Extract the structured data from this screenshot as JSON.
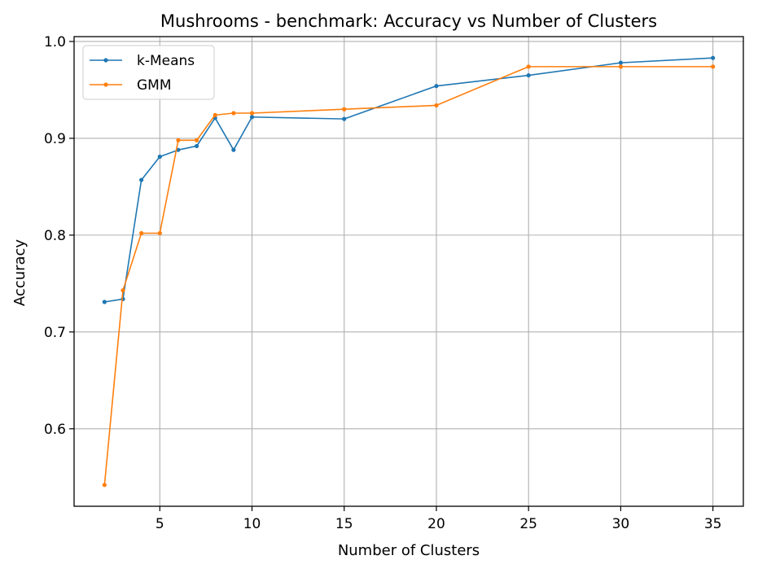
{
  "chart_data": {
    "type": "line",
    "title": "Mushrooms - benchmark: Accuracy vs Number of Clusters",
    "xlabel": "Number of Clusters",
    "ylabel": "Accuracy",
    "xlim": [
      0.35,
      36.65
    ],
    "ylim": [
      0.52,
      1.005
    ],
    "xticks": [
      5,
      10,
      15,
      20,
      25,
      30,
      35
    ],
    "yticks": [
      0.6,
      0.7,
      0.8,
      0.9,
      1.0
    ],
    "xtick_labels": [
      "5",
      "10",
      "15",
      "20",
      "25",
      "30",
      "35"
    ],
    "ytick_labels": [
      "0.6",
      "0.7",
      "0.8",
      "0.9",
      "1.0"
    ],
    "grid": true,
    "legend_position": "top-left",
    "series": [
      {
        "name": "k-Means",
        "color": "#1f77b4",
        "x": [
          2,
          3,
          4,
          5,
          6,
          7,
          8,
          9,
          10,
          15,
          20,
          25,
          30,
          35
        ],
        "y": [
          0.731,
          0.734,
          0.857,
          0.881,
          0.888,
          0.892,
          0.921,
          0.888,
          0.922,
          0.92,
          0.954,
          0.965,
          0.978,
          0.983
        ]
      },
      {
        "name": "GMM",
        "color": "#ff7f0e",
        "x": [
          2,
          3,
          4,
          5,
          6,
          7,
          8,
          9,
          10,
          15,
          20,
          25,
          30,
          35
        ],
        "y": [
          0.542,
          0.743,
          0.802,
          0.802,
          0.898,
          0.898,
          0.924,
          0.926,
          0.926,
          0.93,
          0.934,
          0.974,
          0.974,
          0.974
        ]
      }
    ]
  }
}
